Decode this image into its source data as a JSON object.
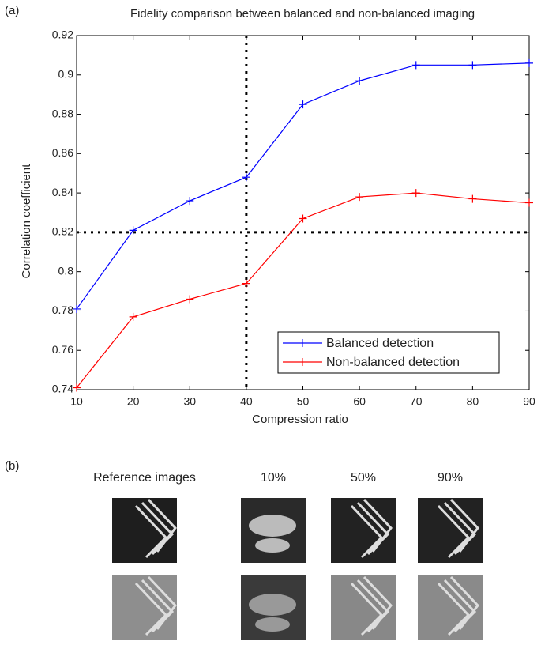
{
  "panels": [
    "(a)",
    "(b)"
  ],
  "chart_data": {
    "type": "line",
    "title": "Fidelity comparison between balanced and non-balanced imaging",
    "x_label": "Compression ratio",
    "y_label": "Correlation coefficient",
    "x": [
      10,
      20,
      30,
      40,
      50,
      60,
      70,
      80,
      90
    ],
    "series": [
      {
        "name": "Balanced detection",
        "color": "#0000ff",
        "values": [
          0.781,
          0.821,
          0.836,
          0.848,
          0.885,
          0.897,
          0.905,
          0.905,
          0.906
        ]
      },
      {
        "name": "Non-balanced detection",
        "color": "#ff0000",
        "values": [
          0.741,
          0.777,
          0.786,
          0.794,
          0.827,
          0.838,
          0.84,
          0.837,
          0.835
        ]
      }
    ],
    "xlim": [
      10,
      90
    ],
    "xticks": [
      10,
      20,
      30,
      40,
      50,
      60,
      70,
      80,
      90
    ],
    "ylim": [
      0.74,
      0.92
    ],
    "yticks": [
      0.74,
      0.76,
      0.78,
      0.8,
      0.82,
      0.84,
      0.86,
      0.88,
      0.9,
      0.92
    ],
    "reference_lines": {
      "x": 40,
      "y": 0.82
    },
    "legend": "lower right"
  },
  "image_grid": {
    "columns": [
      "Reference images",
      "10%",
      "50%",
      "90%"
    ]
  }
}
